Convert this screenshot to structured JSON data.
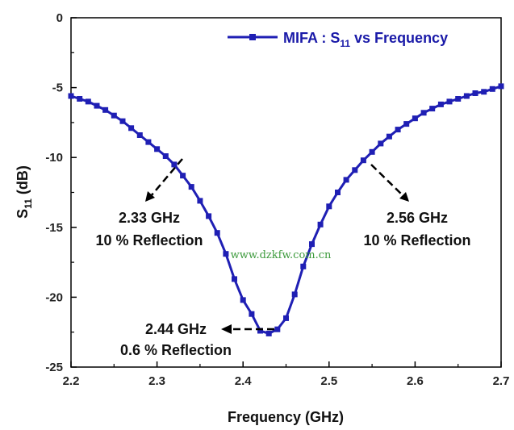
{
  "chart_data": {
    "type": "line",
    "legend": {
      "label_prefix": "MIFA : S",
      "label_sub": "11",
      "label_suffix": " vs Frequency",
      "placement": "top-right"
    },
    "xlabel": "Frequency (GHz)",
    "ylabel_main": "S",
    "ylabel_sub": "11",
    "ylabel_unit": " (dB)",
    "xlim": [
      2.2,
      2.7
    ],
    "ylim": [
      -25,
      0
    ],
    "xticks": [
      2.2,
      2.3,
      2.4,
      2.5,
      2.6,
      2.7
    ],
    "xtick_labels": [
      "2.2",
      "2.3",
      "2.4",
      "2.5",
      "2.6",
      "2.7"
    ],
    "yticks": [
      0,
      -5,
      -10,
      -15,
      -20,
      -25
    ],
    "ytick_labels": [
      "0",
      "-5",
      "-10",
      "-15",
      "-20",
      "-25"
    ],
    "series_color": "#1f1fb4",
    "series": [
      {
        "x": [
          2.2,
          2.21,
          2.22,
          2.23,
          2.24,
          2.25,
          2.26,
          2.27,
          2.28,
          2.29,
          2.3,
          2.31,
          2.32,
          2.33,
          2.34,
          2.35,
          2.36,
          2.37,
          2.38,
          2.39,
          2.4,
          2.41,
          2.42,
          2.43,
          2.44,
          2.45,
          2.46,
          2.47,
          2.48,
          2.49,
          2.5,
          2.51,
          2.52,
          2.53,
          2.54,
          2.55,
          2.56,
          2.57,
          2.58,
          2.59,
          2.6,
          2.61,
          2.62,
          2.63,
          2.64,
          2.65,
          2.66,
          2.67,
          2.68,
          2.69,
          2.7
        ],
        "values": [
          -5.6,
          -5.8,
          -6.0,
          -6.3,
          -6.6,
          -7.0,
          -7.4,
          -7.9,
          -8.4,
          -8.9,
          -9.4,
          -9.9,
          -10.5,
          -11.3,
          -12.1,
          -13.1,
          -14.2,
          -15.4,
          -16.9,
          -18.7,
          -20.2,
          -21.2,
          -22.4,
          -22.6,
          -22.3,
          -21.5,
          -19.8,
          -17.8,
          -16.2,
          -14.8,
          -13.5,
          -12.5,
          -11.6,
          -10.9,
          -10.2,
          -9.6,
          -9.0,
          -8.5,
          -8.0,
          -7.6,
          -7.2,
          -6.8,
          -6.5,
          -6.2,
          -6.0,
          -5.8,
          -5.6,
          -5.4,
          -5.3,
          -5.1,
          -4.9
        ]
      }
    ],
    "annotations": [
      {
        "line1": "2.33 GHz",
        "line2": "10 % Reflection"
      },
      {
        "line1": "2.56 GHz",
        "line2": "10 % Reflection"
      },
      {
        "line1": "2.44 GHz",
        "line2": "0.6 % Reflection"
      }
    ]
  },
  "watermark": "www.dzkfw.com.cn"
}
